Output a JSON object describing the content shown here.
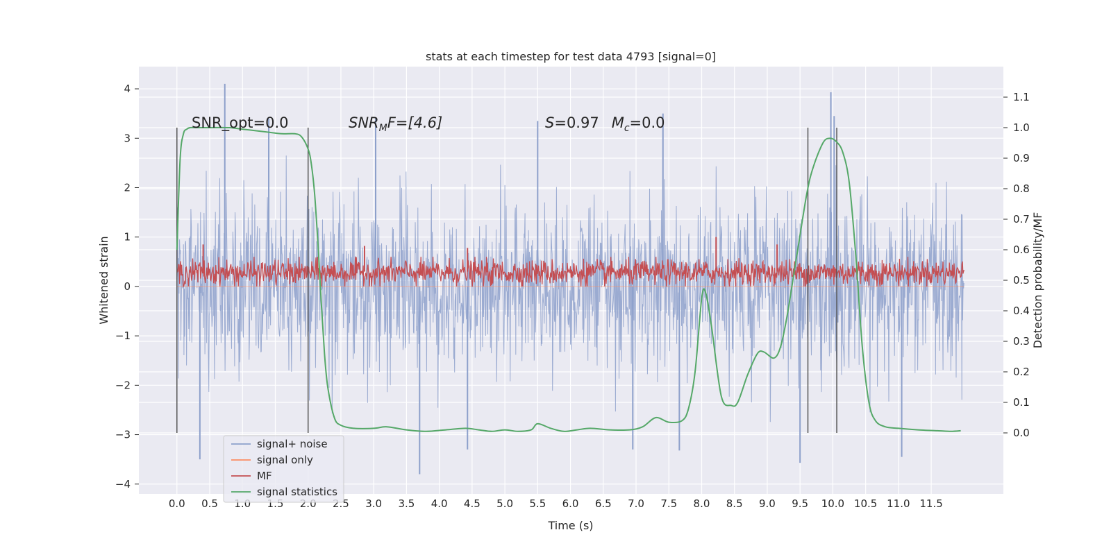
{
  "chart_data": {
    "type": "line",
    "title": "stats at each timestep for test data 4793 [signal=0]",
    "xlabel": "Time (s)",
    "ylabel_left": "Whitened strain",
    "ylabel_right": "Detection probability/MF",
    "xlim": [
      -0.58,
      12.6
    ],
    "ylim_left": [
      -4.2,
      4.45
    ],
    "ylim_right": [
      -0.2,
      1.2
    ],
    "x_ticks": [
      "0.0",
      "0.5",
      "1.0",
      "1.5",
      "2.0",
      "2.5",
      "3.0",
      "3.5",
      "4.0",
      "4.5",
      "5.0",
      "5.5",
      "6.0",
      "6.5",
      "7.0",
      "7.5",
      "8.0",
      "8.5",
      "9.0",
      "9.5",
      "10.0",
      "10.5",
      "11.0",
      "11.5"
    ],
    "y_left_ticks": [
      "4",
      "3",
      "2",
      "1",
      "0",
      "−1",
      "−2",
      "−3",
      "−4"
    ],
    "y_right_ticks": [
      "1.1",
      "1.0",
      "0.9",
      "0.8",
      "0.7",
      "0.6",
      "0.5",
      "0.4",
      "0.3",
      "0.2",
      "0.1",
      "0.0"
    ],
    "grid": true,
    "legend_position": "lower-left",
    "vertical_lines": [
      0.0,
      2.0,
      9.62,
      10.06
    ],
    "annotations": {
      "snr_opt": "SNR_opt=0.0",
      "snr_mf_main": "SNR",
      "snr_mf_sub": "M",
      "snr_mf_rest": "F=[4.6]",
      "s_var": "S",
      "s_rest": "=0.97",
      "mc_var": "M",
      "mc_sub": "c",
      "mc_rest": "=0.0"
    },
    "series": [
      {
        "name": "signal+ noise",
        "color": "#8da0cb",
        "axis": "left",
        "note": "whitened noise, approx zero-mean, amplitude mostly within ±2.7 with peaks to about 4.1 and −3.8",
        "x_range": [
          0.0,
          12.0
        ],
        "envelope_upper": [
          2.45,
          2.6,
          2.8,
          2.75,
          2.9,
          2.7,
          2.8,
          2.75,
          2.85,
          2.8,
          2.9,
          2.8,
          2.85,
          2.7,
          2.9,
          2.8,
          2.85,
          2.75,
          2.8,
          2.9,
          2.7,
          2.8,
          2.6,
          2.7,
          2.5
        ],
        "envelope_lower": [
          -2.5,
          -2.6,
          -2.8,
          -2.75,
          -2.9,
          -2.7,
          -2.8,
          -2.75,
          -2.85,
          -2.8,
          -2.9,
          -2.8,
          -2.85,
          -2.7,
          -2.9,
          -2.8,
          -2.85,
          -2.75,
          -2.8,
          -2.9,
          -2.7,
          -2.8,
          -2.6,
          -2.7,
          -2.5
        ],
        "peaks": [
          [
            0.73,
            4.1
          ],
          [
            9.97,
            3.93
          ],
          [
            1.4,
            3.4
          ],
          [
            3.03,
            3.4
          ],
          [
            5.5,
            3.35
          ],
          [
            10.02,
            3.45
          ],
          [
            7.41,
            3.5
          ],
          [
            3.7,
            -3.8
          ],
          [
            9.5,
            -3.57
          ],
          [
            11.05,
            -3.45
          ],
          [
            0.35,
            -3.5
          ],
          [
            4.43,
            -3.3
          ],
          [
            6.95,
            -3.3
          ],
          [
            7.66,
            -3.32
          ]
        ]
      },
      {
        "name": "signal only",
        "color": "#fc8d62",
        "axis": "left",
        "values_note": "flat at 0 (no signal present)"
      },
      {
        "name": "MF",
        "color": "#c44e52",
        "axis": "left",
        "note": "matched-filter output, band roughly 0.0 to 0.6 with spikes to about 1.0",
        "x_range": [
          0.0,
          12.0
        ],
        "band": [
          0.0,
          0.6
        ],
        "peaks": [
          [
            8.22,
            1.0
          ],
          [
            2.86,
            0.82
          ],
          [
            4.43,
            0.78
          ],
          [
            0.4,
            0.85
          ],
          [
            9.15,
            0.85
          ]
        ]
      },
      {
        "name": "signal statistics",
        "color": "#55a868",
        "axis": "right",
        "x": [
          0.0,
          0.05,
          0.1,
          0.15,
          0.2,
          0.3,
          0.5,
          0.8,
          1.0,
          1.2,
          1.4,
          1.6,
          1.8,
          1.9,
          2.0,
          2.05,
          2.1,
          2.15,
          2.2,
          2.25,
          2.3,
          2.4,
          2.5,
          2.7,
          3.0,
          3.2,
          3.5,
          3.8,
          4.1,
          4.4,
          4.6,
          4.8,
          5.0,
          5.2,
          5.4,
          5.5,
          5.7,
          5.9,
          6.1,
          6.3,
          6.6,
          6.9,
          7.1,
          7.3,
          7.5,
          7.7,
          7.8,
          7.9,
          8.0,
          8.06,
          8.15,
          8.3,
          8.45,
          8.55,
          8.7,
          8.85,
          8.95,
          9.1,
          9.2,
          9.3,
          9.45,
          9.6,
          9.7,
          9.85,
          9.95,
          10.05,
          10.15,
          10.25,
          10.35,
          10.45,
          10.55,
          10.65,
          10.8,
          11.0,
          11.3,
          11.6,
          11.8,
          11.95
        ],
        "values": [
          0.6,
          0.9,
          0.98,
          0.995,
          1.0,
          1.0,
          1.0,
          1.0,
          0.995,
          0.99,
          0.985,
          0.98,
          0.98,
          0.97,
          0.93,
          0.88,
          0.78,
          0.62,
          0.43,
          0.26,
          0.15,
          0.05,
          0.025,
          0.015,
          0.015,
          0.02,
          0.01,
          0.005,
          0.01,
          0.015,
          0.01,
          0.005,
          0.01,
          0.005,
          0.01,
          0.03,
          0.015,
          0.005,
          0.01,
          0.015,
          0.01,
          0.01,
          0.02,
          0.05,
          0.035,
          0.04,
          0.08,
          0.2,
          0.44,
          0.46,
          0.35,
          0.12,
          0.09,
          0.1,
          0.19,
          0.26,
          0.265,
          0.245,
          0.28,
          0.38,
          0.58,
          0.78,
          0.87,
          0.95,
          0.965,
          0.955,
          0.92,
          0.82,
          0.58,
          0.28,
          0.1,
          0.04,
          0.02,
          0.015,
          0.01,
          0.007,
          0.005,
          0.007
        ]
      }
    ]
  }
}
